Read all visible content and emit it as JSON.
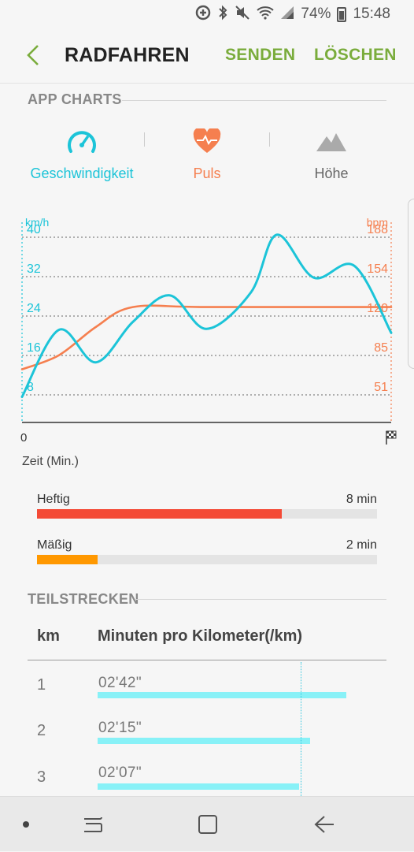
{
  "status_bar": {
    "battery": "74%",
    "time": "15:48",
    "icons": [
      "data-saver-icon",
      "bluetooth-icon",
      "mute-icon",
      "wifi-icon",
      "signal-icon",
      "battery-icon"
    ]
  },
  "app_bar": {
    "title": "RADFAHREN",
    "send_label": "SENDEN",
    "delete_label": "LÖSCHEN",
    "accent": "#7aac3c"
  },
  "charts_section": {
    "header": "APP CHARTS",
    "tabs": [
      {
        "label": "Geschwindigkeit",
        "icon": "speedometer-icon",
        "color": "#1cc4d8"
      },
      {
        "label": "Puls",
        "icon": "heart-rate-icon",
        "color": "#f57f4f"
      },
      {
        "label": "Höhe",
        "icon": "mountain-icon",
        "color": "#aaaaaa"
      }
    ]
  },
  "chart_data": {
    "type": "line",
    "xlabel": "Zeit (Min.)",
    "x_start_label": "0",
    "grid": true,
    "y_left": {
      "unit": "km/h",
      "ticks": [
        "40",
        "32",
        "24",
        "16",
        "8"
      ],
      "range": [
        0,
        40
      ],
      "color": "#1cc4d8"
    },
    "y_right": {
      "unit": "bpm",
      "ticks": [
        "188",
        "154",
        "120",
        "85",
        "51"
      ],
      "range": [
        17,
        188
      ],
      "color": "#f57f4f"
    },
    "x_range": [
      0,
      1
    ],
    "series": [
      {
        "axis": "left",
        "color": "#1cc4d8",
        "points": [
          [
            0,
            7.6
          ],
          [
            0.1,
            21.2
          ],
          [
            0.2,
            14.6
          ],
          [
            0.3,
            22.8
          ],
          [
            0.4,
            28.2
          ],
          [
            0.5,
            21.4
          ],
          [
            0.62,
            28.8
          ],
          [
            0.69,
            40.5
          ],
          [
            0.79,
            31.8
          ],
          [
            0.9,
            34.2
          ],
          [
            1.0,
            20.6
          ]
        ]
      },
      {
        "axis": "right",
        "color": "#f57f4f",
        "points": [
          [
            0,
            73.4
          ],
          [
            0.1,
            85.6
          ],
          [
            0.2,
            110.1
          ],
          [
            0.3,
            127.4
          ],
          [
            0.5,
            127.4
          ],
          [
            1.0,
            127.4
          ]
        ]
      }
    ]
  },
  "zones": [
    {
      "label": "Heftig",
      "value": "8 min",
      "fraction": 0.721,
      "color": "#f44a36"
    },
    {
      "label": "Mäßig",
      "value": "2 min",
      "fraction": 0.178,
      "color": "#ff9800"
    }
  ],
  "splits": {
    "header": "TEILSTRECKEN",
    "col_km": "km",
    "col_pace": "Minuten pro Kilometer(/km)",
    "bar_color": "#88f1f7",
    "rows": [
      {
        "km": "1",
        "pace": "02'42\"",
        "fraction": 0.864
      },
      {
        "km": "2",
        "pace": "02'15\"",
        "fraction": 0.737
      },
      {
        "km": "3",
        "pace": "02'07\"",
        "fraction": 0.7
      }
    ]
  },
  "nav": [
    "nav-dot-icon",
    "recent-apps-icon",
    "home-icon",
    "back-icon"
  ]
}
